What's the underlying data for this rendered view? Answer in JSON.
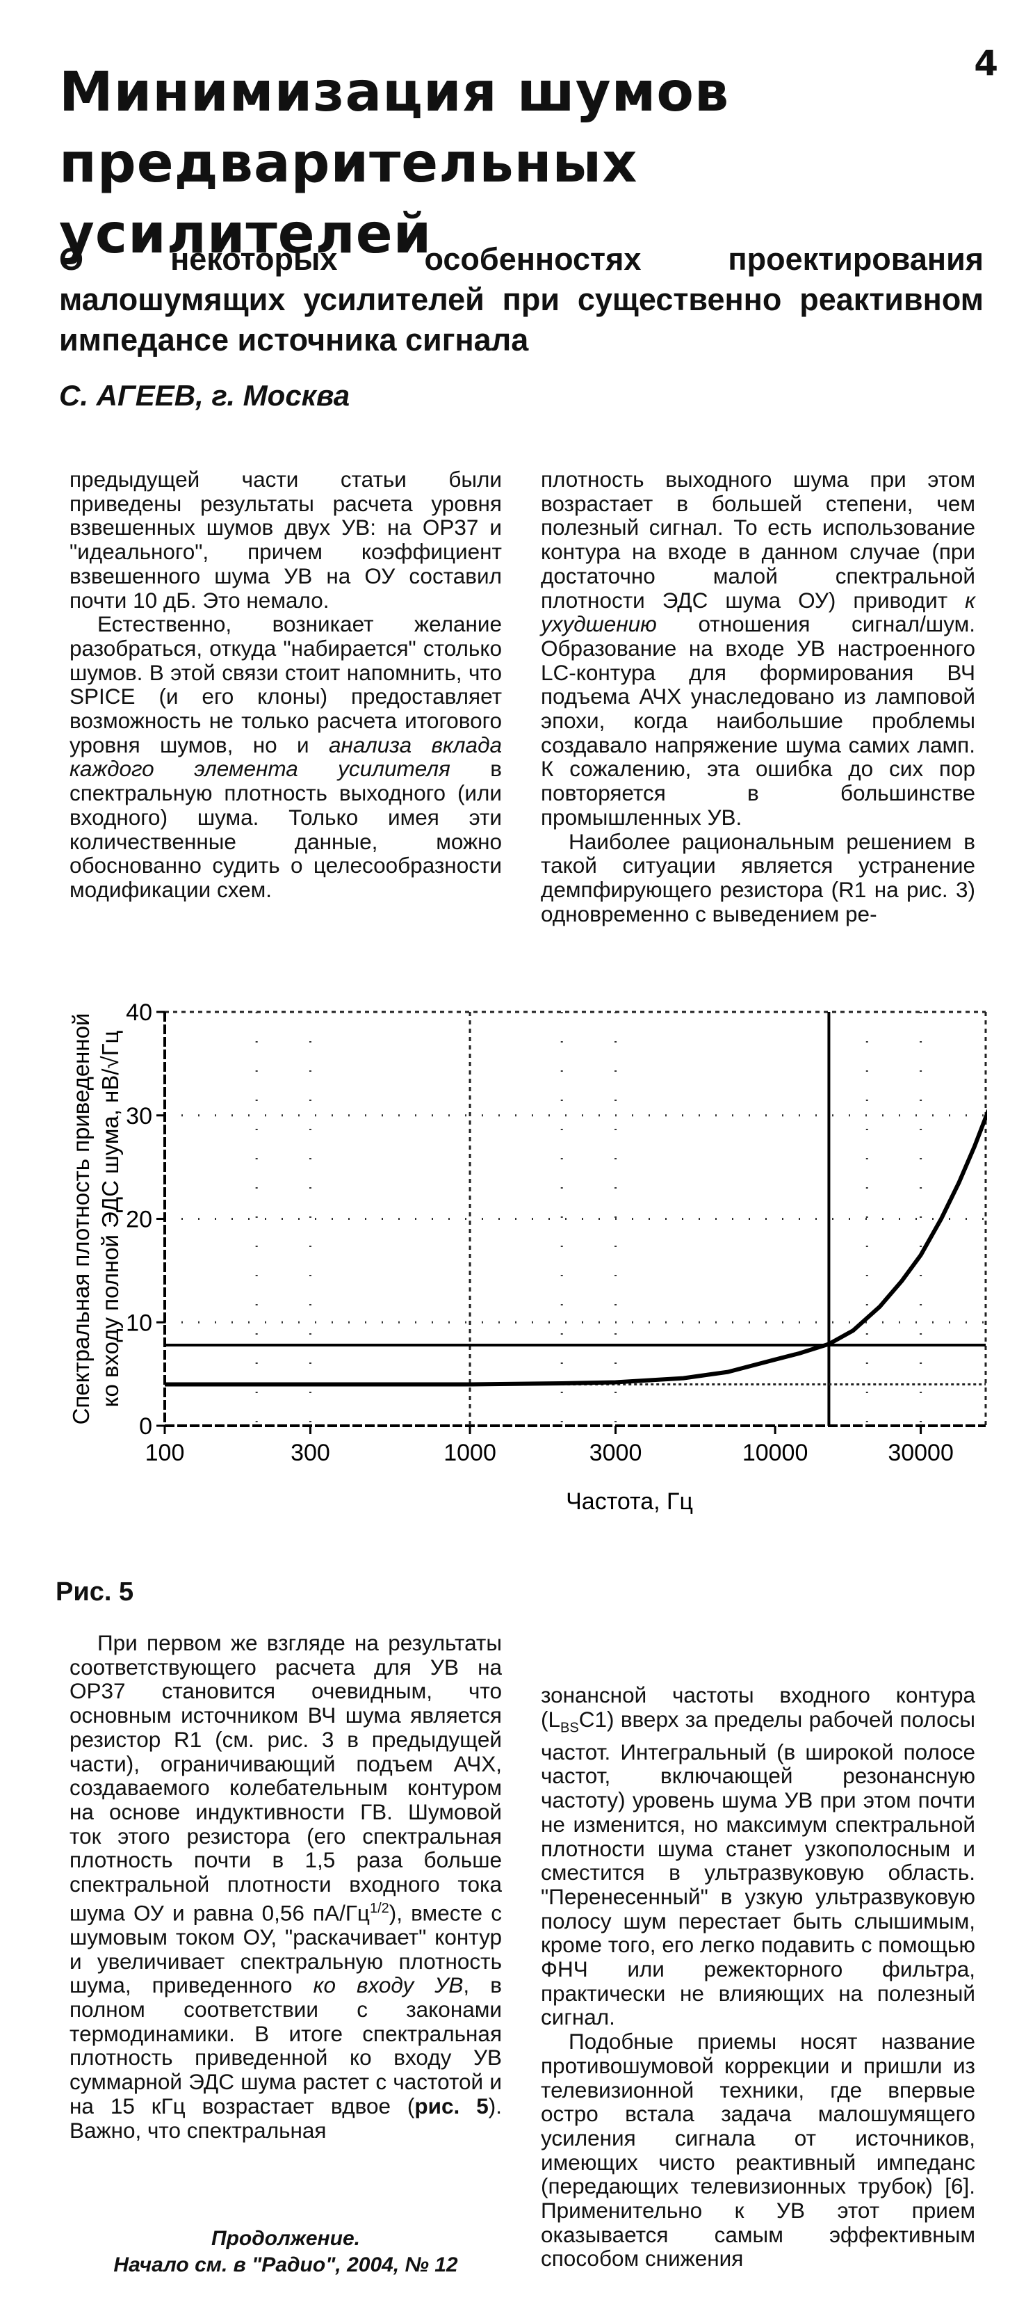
{
  "page_number": "4",
  "title_line1": "Минимизация шумов",
  "title_line2": "предварительных усилителей",
  "subtitle": "О некоторых особенностях проектирования малошумящих усилителей при существенно реактивном импедансе источника сигнала",
  "author": "С. АГЕЕВ, г. Москва",
  "col1_top": {
    "p1": "предыдущей части статьи были приведены результаты расчета уровня взвешенных шумов двух УВ: на OP37 и \"идеального\", причем коэффициент взвешенного шума УВ на ОУ составил почти 10 дБ. Это немало.",
    "p2a": "Естественно, возникает желание разобраться, откуда \"набирается\" столько шумов. В этой связи стоит напомнить, что SPICE (и его клоны) предоставляет возможность не только расчета итогового уровня шумов, но и ",
    "p2em": "анализа вклада каждого элемента усилителя",
    "p2b": " в спектральную плотность выходного (или входного) шума. Только имея эти количественные данные, можно обоснованно судить о целесообразности модификации схем."
  },
  "col2_top": {
    "p1a": "плотность выходного шума при этом возрастает в большей степени, чем полезный сигнал. То есть использование контура на входе в данном случае (при достаточно малой спектральной плотности ЭДС шума ОУ) приводит ",
    "p1em": "к ухудшению",
    "p1b": " отношения сигнал/шум. Образование на входе УВ настроенного LC-контура для формирования ВЧ подъема АЧХ унаследовано из ламповой эпохи, когда наибольшие проблемы создавало напряжение шума самих ламп. К сожалению, эта ошибка до сих пор повторяется в большинстве промышленных УВ.",
    "p2": "Наиболее рациональным решением в такой ситуации является устранение демпфирующего резистора (R1 на рис. 3) одновременно с выведением ре-"
  },
  "figure_caption": "Рис. 5",
  "chart_data": {
    "type": "line",
    "xlabel": "Частота, Гц",
    "ylabel_line1": "Спектральная плотность приведенной",
    "ylabel_line2": "ко входу полной ЭДС шума, нВ/√Гц",
    "x_scale": "log",
    "xlim": [
      100,
      50000
    ],
    "ylim": [
      0,
      40
    ],
    "x_ticks": [
      100,
      300,
      1000,
      3000,
      10000,
      30000
    ],
    "x_tick_labels": [
      "100",
      "300",
      "1000",
      "3000",
      "10000",
      "30000"
    ],
    "y_ticks": [
      0,
      10,
      20,
      30,
      40
    ],
    "y_tick_labels": [
      "0",
      "10",
      "20",
      "30",
      "40"
    ],
    "series": [
      {
        "x": [
          100,
          300,
          1000,
          2000,
          3000,
          5000,
          7000,
          10000,
          12000,
          15000,
          18000,
          22000,
          26000,
          30000,
          35000,
          40000,
          45000,
          50000
        ],
        "y": [
          4.0,
          4.0,
          4.0,
          4.1,
          4.2,
          4.6,
          5.2,
          6.4,
          7.0,
          7.9,
          9.2,
          11.5,
          14.0,
          16.5,
          20.0,
          23.5,
          27.0,
          30.5
        ]
      }
    ],
    "reference_lines": {
      "horizontal_solid": 7.8,
      "horizontal_dotted": 4.0,
      "vertical_solid": 15000,
      "vertical_dotted": 1000
    },
    "grid": "dotted"
  },
  "col1_bot": {
    "p1a": "При первом же взгляде на результаты соответствующего расчета для УВ на OP37 становится очевидным, что основным источником ВЧ шума является резистор R1 (см. рис. 3 в предыдущей части), ограничивающий подъем АЧХ, создаваемого колебательным контуром на основе индуктивности ГВ. Шумовой ток этого резистора (его спектральная плотность почти в 1,5 раза больше спектральной плотности входного тока шума ОУ и равна 0,56 пА/Гц",
    "p1sup": "1/2",
    "p1b": "), вместе с шумовым током ОУ, \"раскачивает\" контур и увеличивает спектральную плотность шума, приведенного ",
    "p1em": "ко входу УВ",
    "p1c": ", в полном соответствии с законами термодинамики. В итоге спектральная плотность приведенной ко входу УВ суммарной ЭДС шума растет с частотой и на 15 кГц возрастает вдвое (",
    "p1bold": "рис. 5",
    "p1d": "). Важно, что спектральная"
  },
  "col2_bot": {
    "p1a": "зонансной частоты входного контура (L",
    "p1sub": "ВS",
    "p1b": "C1) вверх за пределы рабочей полосы частот. Интегральный (в широкой полосе частот, включающей резонансную частоту) уровень шума УВ при этом почти не изменится, но максимум спектральной плотности шума станет узкополосным и сместится в ультразвуковую область. \"Перенесенный\" в узкую ультразвуковую полосу шум перестает быть слышимым, кроме того, его легко подавить с помощью ФНЧ или режекторного фильтра, практически не влияющих на полезный сигнал.",
    "p2": "Подобные приемы носят название противошумовой коррекции и пришли из телевизионной техники, где впервые остро встала задача малошумящего усиления сигнала от источников, имеющих чисто реактивный импеданс (передающих телевизионных трубок) [6]. Применительно к УВ этот прием оказывается самым эффективным способом снижения"
  },
  "continued_label": "Продолжение.",
  "started_label": "Начало см. в \"Радио\", 2004, № 12"
}
